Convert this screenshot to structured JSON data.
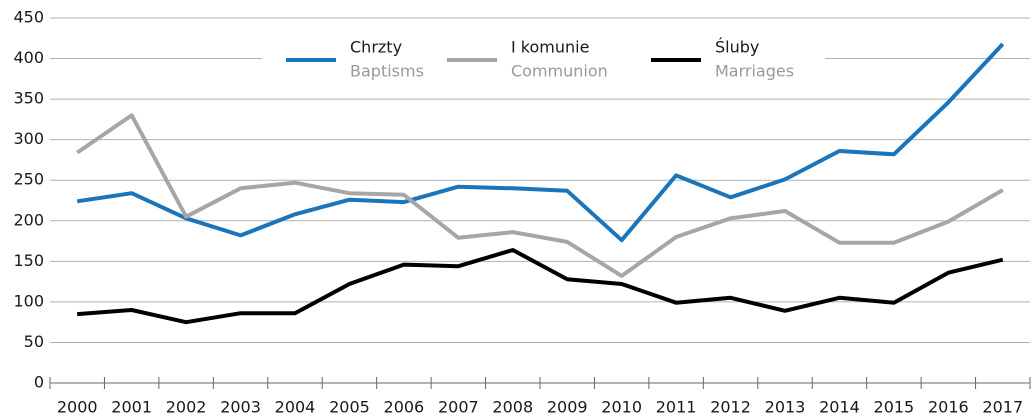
{
  "chart_data": {
    "type": "line",
    "categories": [
      "2000",
      "2001",
      "2002",
      "2003",
      "2004",
      "2005",
      "2006",
      "2007",
      "2008",
      "2009",
      "2010",
      "2011",
      "2012",
      "2013",
      "2014",
      "2015",
      "2016",
      "2017"
    ],
    "series": [
      {
        "name": "Chrzty",
        "name_secondary": "Baptisms",
        "color": "#1a75bb",
        "values": [
          224,
          234,
          203,
          182,
          208,
          226,
          223,
          242,
          240,
          237,
          176,
          256,
          229,
          251,
          286,
          282,
          346,
          418
        ]
      },
      {
        "name": "I komunie",
        "name_secondary": "Communion",
        "color": "#a6a6a6",
        "values": [
          284,
          330,
          205,
          240,
          247,
          234,
          232,
          179,
          186,
          174,
          132,
          180,
          203,
          212,
          173,
          173,
          199,
          238
        ]
      },
      {
        "name": "Śluby",
        "name_secondary": "Marriages",
        "color": "#000000",
        "values": [
          85,
          90,
          75,
          86,
          86,
          122,
          146,
          144,
          164,
          128,
          122,
          99,
          105,
          89,
          105,
          99,
          136,
          152
        ]
      }
    ],
    "ylim": [
      0,
      450
    ],
    "yticks": [
      0,
      50,
      100,
      150,
      200,
      250,
      300,
      350,
      400,
      450
    ],
    "grid": true
  }
}
